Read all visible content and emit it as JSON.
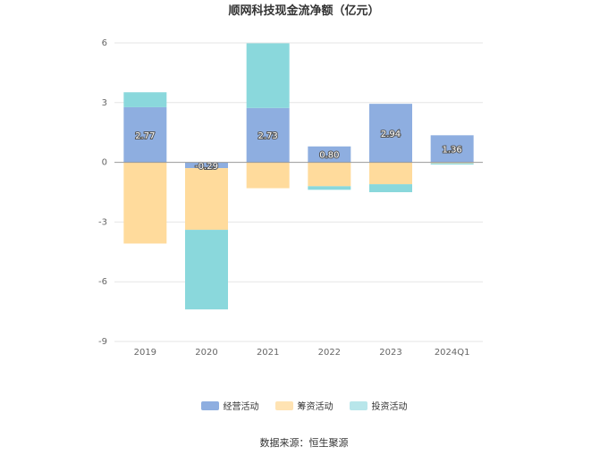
{
  "chart_data": {
    "type": "bar",
    "stacked": true,
    "title": "顺网科技现金流净额（亿元）",
    "categories": [
      "2019",
      "2020",
      "2021",
      "2022",
      "2023",
      "2024Q1"
    ],
    "series": [
      {
        "name": "经营活动",
        "color": "#8eaee0",
        "values": [
          2.77,
          -0.29,
          2.73,
          0.8,
          2.94,
          1.36
        ],
        "labels": [
          "2.77",
          "-0.29",
          "2.73",
          "0.80",
          "2.94",
          "1.36"
        ]
      },
      {
        "name": "筹资活动",
        "color": "#ffdb9c",
        "values": [
          -4.08,
          -3.1,
          -1.3,
          -1.2,
          -1.1,
          -0.05
        ]
      },
      {
        "name": "投资活动",
        "color": "#8ad8dc",
        "values": [
          0.75,
          -4.0,
          3.25,
          -0.18,
          -0.4,
          -0.06
        ]
      }
    ],
    "ylim": [
      -9,
      6
    ],
    "yticks": [
      6,
      3,
      0,
      -3,
      -6,
      -9
    ],
    "grid": true,
    "legend_position": "bottom"
  },
  "legend_swatch_colors": [
    "#8eaee0",
    "#ffe3b3",
    "#b8e6ea"
  ],
  "source": "数据来源：恒生聚源"
}
